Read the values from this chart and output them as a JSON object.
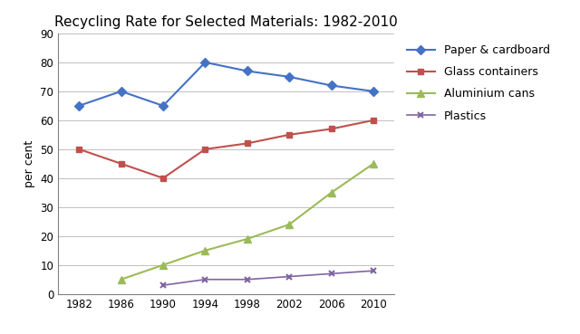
{
  "title": "Recycling Rate for Selected Materials: 1982-2010",
  "ylabel": "per cent",
  "years": [
    1982,
    1986,
    1990,
    1994,
    1998,
    2002,
    2006,
    2010
  ],
  "series": [
    {
      "name": "Paper & cardboard",
      "values": [
        65,
        70,
        65,
        80,
        77,
        75,
        72,
        70
      ],
      "color": "#4472C4",
      "marker": "D",
      "markersize": 5,
      "linewidth": 1.5
    },
    {
      "name": "Glass containers",
      "values": [
        50,
        45,
        40,
        50,
        52,
        55,
        57,
        60
      ],
      "color": "#C0504D",
      "marker": "s",
      "markersize": 5,
      "linewidth": 1.5
    },
    {
      "name": "Aluminium cans",
      "values": [
        null,
        5,
        10,
        15,
        19,
        24,
        35,
        45
      ],
      "color": "#9BBB59",
      "marker": "^",
      "markersize": 6,
      "linewidth": 1.5
    },
    {
      "name": "Plastics",
      "values": [
        null,
        null,
        3,
        5,
        5,
        6,
        7,
        8
      ],
      "color": "#8064A2",
      "marker": "x",
      "markersize": 5,
      "linewidth": 1.2
    }
  ],
  "ylim": [
    0,
    90
  ],
  "yticks": [
    0,
    10,
    20,
    30,
    40,
    50,
    60,
    70,
    80,
    90
  ],
  "xticks": [
    1982,
    1986,
    1990,
    1994,
    1998,
    2002,
    2006,
    2010
  ],
  "grid_color": "#C0C0C0",
  "background_color": "#FFFFFF",
  "title_fontsize": 11,
  "label_fontsize": 9,
  "tick_fontsize": 8.5,
  "xlim": [
    1980,
    2012
  ]
}
